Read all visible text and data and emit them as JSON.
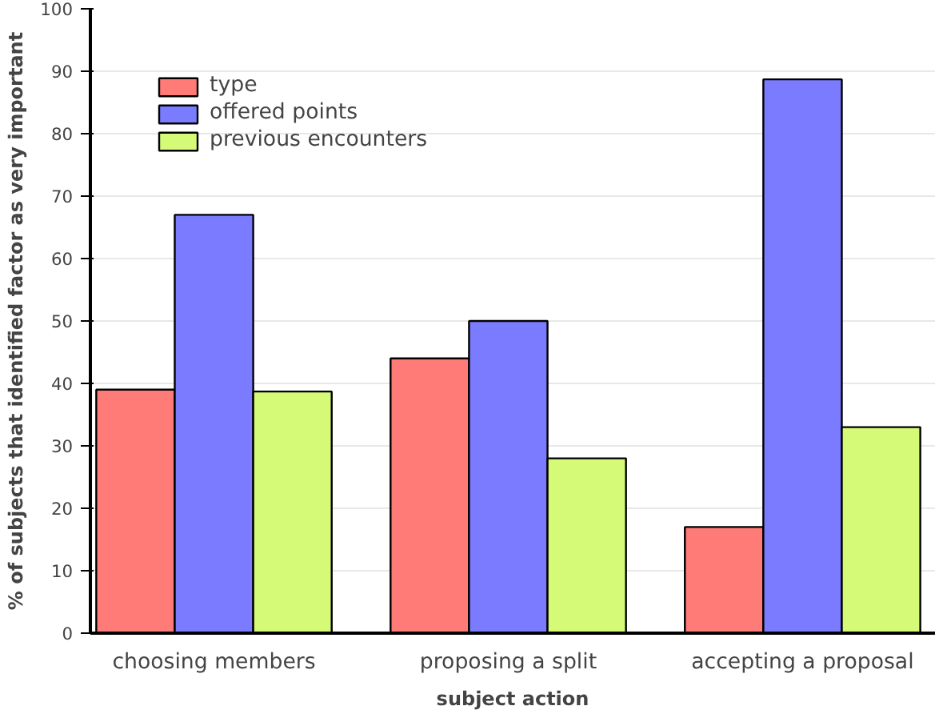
{
  "chart_data": {
    "type": "bar",
    "xlabel": "subject action",
    "ylabel": "% of subjects that identified factor as very important",
    "categories": [
      "choosing members",
      "proposing a split",
      "accepting a proposal"
    ],
    "series": [
      {
        "name": "type",
        "color": "#ff7b78",
        "values": [
          39,
          44,
          17
        ]
      },
      {
        "name": "offered points",
        "color": "#7b7bff",
        "values": [
          67,
          50,
          88.7
        ]
      },
      {
        "name": "previous encounters",
        "color": "#d4fa78",
        "values": [
          38.7,
          28,
          33
        ]
      }
    ],
    "ylim": [
      0,
      100
    ],
    "yticks": [
      0,
      10,
      20,
      30,
      40,
      50,
      60,
      70,
      80,
      90,
      100
    ],
    "grid": "y",
    "legend": "top left"
  }
}
